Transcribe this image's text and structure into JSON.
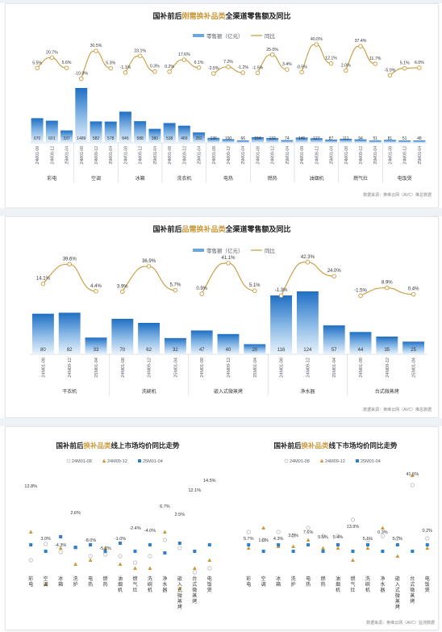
{
  "chart_data": [
    {
      "type": "bar",
      "title_plain_1": "国补前后",
      "title_highlight": "刚需换补品类",
      "title_plain_2": "全渠道零售额及同比",
      "legend": [
        "零售额（亿元）",
        "同比"
      ],
      "legend_position": "top-right",
      "source": "数据来源：奥维云网（AVC）推总数据",
      "periods": [
        "24M01-08",
        "24M09-12",
        "25M01-04"
      ],
      "categories": [
        "彩电",
        "空调",
        "冰箱",
        "洗衣机",
        "电热",
        "燃热",
        "油烟机",
        "燃气灶",
        "电饭煲"
      ],
      "series": [
        {
          "name": "零售额（亿元）",
          "values": [
            [
              670,
              601,
              337
            ],
            [
              1489,
              582,
              578
            ],
            [
              846,
              588,
              380
            ],
            [
              538,
              466,
              282
            ],
            [
              136,
              100,
              66
            ],
            [
              154,
              132,
              74
            ],
            [
              145,
              127,
              87
            ],
            [
              111,
              94,
              51
            ],
            [
              81,
              51,
              48
            ]
          ]
        },
        {
          "name": "同比",
          "values": [
            [
              5.5,
              20.7,
              5.6
            ],
            [
              -10.0,
              30.5,
              5.3
            ],
            [
              -1.1,
              23.1,
              0.3
            ],
            [
              0.2,
              17.6,
              6.1
            ],
            [
              -2.5,
              7.2,
              -1.2
            ],
            [
              -1.5,
              25.0,
              3.4
            ],
            [
              -0.5,
              40.0,
              12.1
            ],
            [
              2.0,
              37.4,
              11.7
            ],
            [
              -5.0,
              5.1,
              6.0
            ]
          ]
        }
      ]
    },
    {
      "type": "bar",
      "title_plain_1": "国补前后",
      "title_highlight": "品需换补品类",
      "title_plain_2": "全渠道零售额及同比",
      "legend": [
        "零售额（亿元）",
        "同比"
      ],
      "legend_position": "top-right",
      "source": "数据来源：奥维云网（AVC）推总数据",
      "periods": [
        "24M01-08",
        "24M09-12",
        "25M01-04"
      ],
      "categories": [
        "干衣机",
        "洗碗机",
        "嵌入式微蒸烤",
        "净水器",
        "台式微蒸烤"
      ],
      "series": [
        {
          "name": "零售额（亿元）",
          "values": [
            [
              80,
              82,
              33
            ],
            [
              70,
              62,
              32
            ],
            [
              47,
              40,
              20
            ],
            [
              116,
              124,
              57
            ],
            [
              44,
              35,
              25
            ]
          ]
        },
        {
          "name": "同比",
          "values": [
            [
              14.1,
              39.6,
              4.4
            ],
            [
              3.9,
              36.9,
              5.7
            ],
            [
              0.9,
              41.1,
              5.1
            ],
            [
              -1.3,
              42.3,
              24.0
            ],
            [
              -1.5,
              8.9,
              0.4
            ]
          ]
        }
      ]
    },
    {
      "type": "scatter",
      "title_plain_1": "国补前后",
      "title_highlight": "换补品类",
      "title_plain_2": "线上市场均价同比走势",
      "legend": [
        "24M01-08",
        "24M09-12",
        "25M01-04"
      ],
      "legend_position": "top",
      "categories": [
        "彩电",
        "空调",
        "冰箱",
        "洗护",
        "电热",
        "燃热",
        "油烟机",
        "燃气灶",
        "洗碗机",
        "净水器",
        "嵌入式微蒸烤",
        "台式微蒸烤",
        "电饭煲"
      ],
      "labels": [
        "12.8%",
        "3.0%",
        "-4.3%",
        "2.6%",
        "-8.0%",
        "-5.2%",
        "-1.0%",
        "-2.4%",
        "-4.0%",
        "6.7%",
        "2.5%",
        "12.1%",
        "14.5%"
      ]
    },
    {
      "type": "scatter",
      "title_plain_1": "国补前后",
      "title_highlight": "换补品类",
      "title_plain_2": "线下市场均价同比走势",
      "legend": [
        "24M01-08",
        "24M09-12",
        "25M01-04"
      ],
      "legend_position": "top",
      "source": "数据来源：奥维云网（AVC）监测数据",
      "categories": [
        "彩电",
        "空调",
        "冰箱",
        "洗护",
        "电热",
        "燃热",
        "油烟机",
        "燃气灶",
        "洗碗机",
        "净水器",
        "嵌入式微蒸烤",
        "台式微蒸烤",
        "电饭煲"
      ],
      "labels": [
        "5.7%",
        "1.6%",
        "4.3%",
        "3.5%",
        "7.6%",
        "5.5%",
        "5.4%",
        "13.9%",
        "5.1%",
        "0.3%",
        "5.7%",
        "41.5%",
        "0.2%"
      ]
    }
  ]
}
